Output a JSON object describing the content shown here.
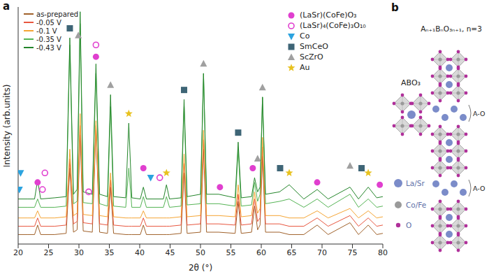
{
  "chart_data": {
    "type": "line",
    "panel_label": "a",
    "xlabel": "2θ (°)",
    "ylabel": "Intensity (arb.units)",
    "tick_labels": "x",
    "xlim": [
      20,
      80
    ],
    "xticks": [
      20,
      25,
      30,
      35,
      40,
      45,
      50,
      55,
      60,
      65,
      70,
      75,
      80
    ],
    "ylim": [
      0,
      100
    ],
    "x": [
      20,
      21.5,
      22.7,
      23.2,
      23.7,
      26,
      27.9,
      28.5,
      29.1,
      29.7,
      30.2,
      30.7,
      32.2,
      32.8,
      33.4,
      34.7,
      35.2,
      35.7,
      37.7,
      38.2,
      38.7,
      40.1,
      40.6,
      41.1,
      43.9,
      44.4,
      44.9,
      46.8,
      47.3,
      47.8,
      50,
      50.5,
      51,
      53,
      55.7,
      56.2,
      56.7,
      58.4,
      58.9,
      59.4,
      59.8,
      60.2,
      60.7,
      63,
      64.6,
      67,
      69.2,
      71,
      74.6,
      76,
      77.6,
      79,
      80
    ],
    "series": [
      {
        "name": "as-prepared",
        "color": "#a0612a",
        "values": [
          4,
          4,
          4,
          8,
          4,
          4,
          4.5,
          32,
          5,
          6,
          46,
          5.5,
          5,
          48,
          5,
          4.5,
          24,
          4.5,
          4,
          4,
          4,
          4,
          8,
          4,
          4,
          4,
          4,
          4.5,
          30,
          4.5,
          5,
          40,
          5,
          5,
          4.5,
          18,
          4.5,
          5,
          16,
          6,
          8,
          37,
          5,
          5,
          4,
          4,
          8,
          4,
          9,
          4,
          8,
          4,
          4.5
        ]
      },
      {
        "name": "-0.05 V",
        "color": "#e8563f",
        "values": [
          7.5,
          7.5,
          7.5,
          11,
          7.5,
          7.5,
          8,
          36,
          8.5,
          9.5,
          50,
          9,
          8.5,
          50,
          8.5,
          8,
          27,
          8,
          7.5,
          7.5,
          7.5,
          7.5,
          11,
          7.5,
          7.5,
          7.5,
          7.5,
          8,
          34,
          8,
          8.5,
          44,
          8.5,
          8.5,
          8,
          21,
          8,
          8.5,
          19,
          9.5,
          11,
          41,
          8.5,
          8.5,
          7.5,
          7.5,
          11,
          7.5,
          12,
          7.5,
          11,
          7.5,
          8
        ]
      },
      {
        "name": "-0.1 V",
        "color": "#f5a534",
        "values": [
          11,
          11,
          11,
          14,
          11,
          11,
          11.5,
          40,
          12,
          13,
          55,
          12.5,
          12,
          52,
          12,
          11.5,
          30,
          11.5,
          11,
          11,
          11,
          11,
          14,
          11,
          11,
          11,
          11,
          11.5,
          38,
          11.5,
          12,
          48,
          12,
          12,
          11.5,
          25,
          11.5,
          12,
          22,
          13,
          15,
          45,
          12,
          12,
          11,
          11,
          14,
          11,
          15,
          11,
          14,
          11,
          11.5
        ]
      },
      {
        "name": "-0.35 V",
        "color": "#55b455",
        "values": [
          15.5,
          15.5,
          15.5,
          19,
          15.5,
          15.5,
          16,
          84,
          17,
          18,
          93,
          17.5,
          17,
          72,
          17,
          16,
          58,
          16,
          15.5,
          32,
          15.5,
          15.5,
          20,
          15.5,
          15.5,
          20,
          15.5,
          16,
          58,
          16.5,
          17,
          72,
          17,
          17,
          16,
          40,
          16,
          16.5,
          26,
          18,
          21,
          62,
          17,
          18,
          19,
          15.5,
          19,
          15.5,
          21,
          15.5,
          19,
          15.5,
          16
        ]
      },
      {
        "name": "-0.43 V",
        "color": "#23852a",
        "values": [
          19,
          19,
          19,
          27,
          19,
          19.5,
          20,
          87,
          21,
          23,
          98,
          22,
          21,
          76,
          21,
          20,
          63,
          20,
          19.5,
          51,
          19.5,
          19,
          24,
          19,
          19,
          25,
          19,
          19.5,
          61,
          20,
          21,
          72,
          21,
          21,
          19.5,
          43,
          19.5,
          20,
          28,
          22,
          24,
          62,
          21,
          22,
          25,
          19,
          23,
          19,
          24,
          19,
          24,
          19.5,
          20
        ]
      }
    ],
    "peak_markers": [
      {
        "name": "(LaSr)(CoFe)O₃",
        "marker": "circle",
        "color": "#e03fcf",
        "points": [
          [
            23.2,
            26
          ],
          [
            32.8,
            79
          ],
          [
            40.6,
            32
          ],
          [
            53.2,
            24
          ],
          [
            58.6,
            32
          ],
          [
            69.2,
            26
          ],
          [
            79.5,
            25
          ]
        ]
      },
      {
        "name": "(LaSr)₄(CoFe)₃O₁₀",
        "marker": "circle_open",
        "color": "#e03fcf",
        "points": [
          [
            24.4,
            30
          ],
          [
            24.0,
            23
          ],
          [
            31.6,
            22
          ],
          [
            32.8,
            84
          ],
          [
            43.3,
            28
          ]
        ]
      },
      {
        "name": "Co",
        "marker": "triangle_down",
        "color": "#2ba3df",
        "points": [
          [
            20.4,
            30
          ],
          [
            20.2,
            23
          ],
          [
            41.8,
            28
          ]
        ]
      },
      {
        "name": "SmCeO",
        "marker": "square",
        "color": "#3e6576",
        "points": [
          [
            28.5,
            91
          ],
          [
            47.3,
            65
          ],
          [
            56.2,
            47
          ],
          [
            63.1,
            32
          ],
          [
            76.5,
            32
          ]
        ]
      },
      {
        "name": "ScZrO",
        "marker": "triangle",
        "color": "#a0a0a0",
        "points": [
          [
            29.9,
            88
          ],
          [
            35.2,
            67
          ],
          [
            50.5,
            76
          ],
          [
            59.4,
            36
          ],
          [
            60.2,
            66
          ],
          [
            74.6,
            33
          ]
        ]
      },
      {
        "name": "Au",
        "marker": "star",
        "color": "#e8c21f",
        "points": [
          [
            38.2,
            55
          ],
          [
            44.4,
            30
          ],
          [
            64.6,
            30
          ],
          [
            77.6,
            30
          ]
        ]
      }
    ]
  },
  "diagram": {
    "panel_label": "b",
    "structures": [
      {
        "title": "ABO₃"
      },
      {
        "title": "Aₙ₊₁BₙO₃ₙ₊₁, n=3",
        "layer_labels": [
          "A-O",
          "A-O"
        ]
      }
    ],
    "atoms": [
      {
        "label": "La/Sr",
        "color": "#7b8cc9"
      },
      {
        "label": "Co/Fe",
        "color": "#9a9a9a"
      },
      {
        "label": "O",
        "color": "#b0309a"
      }
    ]
  }
}
